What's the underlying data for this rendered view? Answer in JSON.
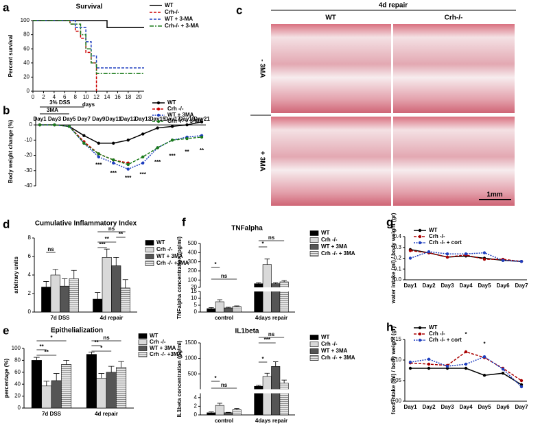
{
  "panel_labels": [
    "a",
    "b",
    "c",
    "d",
    "e",
    "f",
    "g",
    "h"
  ],
  "histology": {
    "title": "4d repair",
    "columns": [
      "WT",
      "Crh-/-"
    ],
    "rows": [
      "- 3MA",
      "+ 3MA"
    ],
    "scale_bar": "1mm"
  },
  "chart_data": [
    {
      "type": "line",
      "step": true,
      "title": "Survival",
      "xlabel": "days",
      "ylabel": "Percent survival",
      "xlim": [
        0,
        21
      ],
      "xticks": [
        0,
        2,
        4,
        6,
        8,
        10,
        12,
        14,
        16,
        18,
        20
      ],
      "ylim": [
        0,
        100
      ],
      "yticks": [
        0,
        20,
        40,
        60,
        80,
        100
      ],
      "series": [
        {
          "name": "WT",
          "color": "#000000",
          "linestyle": "solid",
          "x": [
            0,
            14,
            21
          ],
          "values": [
            100,
            90,
            90
          ]
        },
        {
          "name": "Crh-/-",
          "color": "#cc0000",
          "linestyle": "dashed",
          "x": [
            0,
            7,
            8,
            9,
            10,
            11,
            12
          ],
          "values": [
            100,
            95,
            85,
            75,
            55,
            40,
            0
          ]
        },
        {
          "name": "WT + 3-MA",
          "color": "#1f3fbf",
          "linestyle": "dashed",
          "x": [
            0,
            8,
            10,
            11,
            12,
            21
          ],
          "values": [
            100,
            90,
            70,
            50,
            33,
            33
          ]
        },
        {
          "name": "Crh-/- + 3-MA",
          "color": "#1a7a1a",
          "linestyle": "dashdot",
          "x": [
            0,
            7,
            9,
            10,
            11,
            12,
            21
          ],
          "values": [
            100,
            95,
            80,
            60,
            40,
            25,
            25
          ]
        }
      ]
    },
    {
      "type": "line",
      "ylabel": "Body weight change (%)",
      "categories": [
        "Day1",
        "Day3",
        "Day5",
        "Day7",
        "Day9",
        "Day11",
        "Day12",
        "Day13",
        "Day15",
        "Day17",
        "Day19",
        "Day21"
      ],
      "ylim": [
        -40,
        5
      ],
      "yticks": [
        0,
        -10,
        -20,
        -30,
        -40
      ],
      "annotations": [
        "3% DSS",
        "3MA",
        "***",
        "***",
        "***",
        "***",
        "***",
        "***",
        "**",
        "**"
      ],
      "series": [
        {
          "name": "WT",
          "color": "#000000",
          "linestyle": "solid",
          "values": [
            0,
            0,
            -1,
            -7,
            -12,
            -12,
            -10,
            -6,
            -2,
            -1,
            0,
            2
          ]
        },
        {
          "name": "Crh -/-",
          "color": "#cc0000",
          "linestyle": "dashed",
          "values": [
            0,
            0,
            -1,
            -11,
            -19,
            -23,
            -25,
            null,
            null,
            null,
            null,
            null
          ]
        },
        {
          "name": "WT + 3MA",
          "color": "#1f3fbf",
          "linestyle": "dotted",
          "values": [
            0,
            0,
            -1,
            -12,
            -21,
            -25,
            -29,
            -25,
            -15,
            -10,
            -8,
            -7
          ]
        },
        {
          "name": "Crh -/- + 3-MA",
          "color": "#1a7a1a",
          "linestyle": "dashed",
          "values": [
            0,
            0,
            -1,
            -12,
            -19,
            -23,
            -26,
            -21,
            -15,
            -10,
            -9,
            -8
          ]
        }
      ]
    },
    {
      "type": "bar",
      "title": "Cumulative Inflammatory Index",
      "ylabel": "arbitrary units",
      "categories": [
        "7d DSS",
        "4d repair"
      ],
      "ylim": [
        0,
        8
      ],
      "yticks": [
        0,
        2,
        4,
        6,
        8
      ],
      "annotations": [
        "ns",
        "ns",
        "**",
        "**",
        "***"
      ],
      "series": [
        {
          "name": "WT",
          "color": "#000000",
          "values": [
            2.7,
            1.4
          ],
          "errors": [
            0.6,
            0.7
          ]
        },
        {
          "name": "Crh -/-",
          "color": "#d9d9d9",
          "values": [
            4.0,
            5.9
          ],
          "errors": [
            0.6,
            0.9
          ]
        },
        {
          "name": "WT + 3MA",
          "color": "#555555",
          "values": [
            2.8,
            5.0
          ],
          "errors": [
            0.8,
            0.9
          ]
        },
        {
          "name": "Crh -/- +3MA",
          "color": "#bfbfbf",
          "hatch": true,
          "values": [
            3.6,
            2.6
          ],
          "errors": [
            0.9,
            0.9
          ]
        }
      ]
    },
    {
      "type": "bar",
      "title": "Epithelialization",
      "ylabel": "percentage (%)",
      "categories": [
        "7d DSS",
        "4d repair"
      ],
      "ylim": [
        0,
        100
      ],
      "yticks": [
        0,
        20,
        40,
        60,
        80,
        100
      ],
      "annotations": [
        "*",
        "**",
        "**",
        "ns",
        "**",
        "*"
      ],
      "series": [
        {
          "name": "WT",
          "color": "#000000",
          "values": [
            80,
            90
          ],
          "errors": [
            5,
            4
          ]
        },
        {
          "name": "Crh -/-",
          "color": "#d9d9d9",
          "values": [
            37,
            50
          ],
          "errors": [
            8,
            8
          ]
        },
        {
          "name": "WT + 3MA",
          "color": "#555555",
          "values": [
            46,
            60
          ],
          "errors": [
            12,
            10
          ]
        },
        {
          "name": "Crh -/- +3MA",
          "color": "#bfbfbf",
          "hatch": true,
          "values": [
            73,
            68
          ],
          "errors": [
            7,
            10
          ]
        }
      ]
    },
    {
      "type": "bar",
      "title": "TNFalpha",
      "ylabel": "TNFalpha concentration (pg/ml)",
      "categories": [
        "control",
        "4days repair"
      ],
      "segments": [
        {
          "ylim": [
            0,
            15
          ],
          "yticks": [
            0,
            5,
            10,
            15
          ]
        },
        {
          "ylim": [
            20,
            500
          ],
          "yticks": [
            20,
            100,
            200,
            300,
            400,
            500
          ]
        }
      ],
      "annotations": [
        "*",
        "ns",
        "*",
        "ns"
      ],
      "series": [
        {
          "name": "WT",
          "color": "#000000",
          "values": [
            2.5,
            60
          ],
          "errors": [
            0.8,
            10
          ]
        },
        {
          "name": "Crh -/-",
          "color": "#d9d9d9",
          "values": [
            7.5,
            270
          ],
          "errors": [
            1.5,
            60
          ]
        },
        {
          "name": "WT + 3MA",
          "color": "#555555",
          "values": [
            3,
            60
          ],
          "errors": [
            0.5,
            10
          ]
        },
        {
          "name": "Crh -/- + 3MA",
          "color": "#bfbfbf",
          "hatch": true,
          "values": [
            4,
            80
          ],
          "errors": [
            0.5,
            15
          ]
        }
      ]
    },
    {
      "type": "bar",
      "title": "IL1beta",
      "ylabel": "IL1beta concentration (pg/ml)",
      "categories": [
        "control",
        "4days repair"
      ],
      "segments": [
        {
          "ylim": [
            0,
            5
          ],
          "yticks": [
            0,
            2,
            4
          ]
        },
        {
          "ylim": [
            5,
            1500
          ],
          "yticks": [
            500,
            1000,
            1500
          ]
        }
      ],
      "annotations": [
        "*",
        "ns",
        "*",
        "***",
        "ns"
      ],
      "series": [
        {
          "name": "WT",
          "color": "#000000",
          "values": [
            0.5,
            100
          ],
          "errors": [
            0.2,
            30
          ]
        },
        {
          "name": "Crh -/-",
          "color": "#d9d9d9",
          "values": [
            2.2,
            420
          ],
          "errors": [
            0.5,
            100
          ]
        },
        {
          "name": "WT + 3MA",
          "color": "#555555",
          "values": [
            0.5,
            740
          ],
          "errors": [
            0.1,
            150
          ]
        },
        {
          "name": "Crh -/- + 3MA",
          "color": "#bfbfbf",
          "hatch": true,
          "values": [
            1.2,
            200
          ],
          "errors": [
            0.3,
            100
          ]
        }
      ]
    },
    {
      "type": "line",
      "ylabel": "water intake (ml) / body weight (gr)",
      "categories": [
        "Day1",
        "Day2",
        "Day3",
        "Day4",
        "Day5",
        "Day6",
        "Day7"
      ],
      "ylim": [
        0,
        0.4
      ],
      "yticks": [
        {
          "value": 0,
          "label": "0.0"
        },
        0.1,
        0.2,
        0.3,
        0.4
      ],
      "series": [
        {
          "name": "WT",
          "color": "#000000",
          "linestyle": "solid",
          "values": [
            0.28,
            0.25,
            0.21,
            0.22,
            0.2,
            0.18,
            0.17
          ]
        },
        {
          "name": "Crh -/-",
          "color": "#aa0000",
          "linestyle": "dashed",
          "values": [
            0.27,
            0.25,
            0.21,
            0.23,
            0.19,
            0.19,
            0.17
          ]
        },
        {
          "name": "Crh -/- + cort",
          "color": "#1f3fbf",
          "linestyle": "dotted",
          "values": [
            0.2,
            0.26,
            0.24,
            0.24,
            0.25,
            0.18,
            0.17
          ]
        }
      ]
    },
    {
      "type": "line",
      "ylabel": "food intake (ml) / body weight (gr)",
      "categories": [
        "Day1",
        "Day2",
        "Day3",
        "Day4",
        "Day5",
        "Day6",
        "Day7"
      ],
      "ylim": [
        0,
        0.15
      ],
      "yticks": [
        {
          "value": 0,
          "label": "0.00"
        },
        {
          "value": 0.05,
          "label": "0.05"
        },
        {
          "value": 0.1,
          "label": "0.10"
        },
        {
          "value": 0.15,
          "label": "0.15"
        }
      ],
      "annotations": [
        "*",
        "*"
      ],
      "series": [
        {
          "name": "WT",
          "color": "#000000",
          "linestyle": "solid",
          "values": [
            0.08,
            0.08,
            0.08,
            0.08,
            0.063,
            0.068,
            0.04
          ]
        },
        {
          "name": "Crh -/-",
          "color": "#aa0000",
          "linestyle": "dashed",
          "values": [
            0.093,
            0.09,
            0.087,
            0.12,
            0.106,
            0.08,
            0.05
          ]
        },
        {
          "name": "Crh -/- + cort",
          "color": "#1f3fbf",
          "linestyle": "dotted",
          "values": [
            0.095,
            0.102,
            0.085,
            0.09,
            0.108,
            0.078,
            0.035
          ]
        }
      ]
    }
  ]
}
